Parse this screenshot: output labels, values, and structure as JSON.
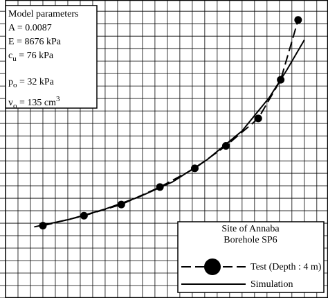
{
  "chart_data": {
    "type": "line",
    "grid": true,
    "xlim": [
      0,
      25.9
    ],
    "ylim": [
      0,
      23.9
    ],
    "series": [
      {
        "name": "Test (Depth : 4 m)",
        "color": "#000",
        "marker": "circle",
        "dash": true,
        "x": [
          3.0,
          6.3,
          9.3,
          12.4,
          15.2,
          17.7,
          20.3,
          22.1,
          23.5
        ],
        "values": [
          5.8,
          6.6,
          7.5,
          8.9,
          10.4,
          12.2,
          14.4,
          17.5,
          22.3
        ]
      },
      {
        "name": "Simulation",
        "color": "#000",
        "marker": "none",
        "dash": false,
        "x": [
          2.3,
          5.1,
          7.9,
          10.7,
          13.4,
          16.2,
          19.0,
          21.2,
          22.6,
          24.0
        ],
        "values": [
          5.7,
          6.3,
          7.1,
          8.1,
          9.3,
          11.1,
          13.4,
          16.1,
          18.3,
          20.7
        ]
      }
    ],
    "parameters_title": "Model parameters",
    "parameters": [
      {
        "symbol": "A",
        "sub": "",
        "text": "  = 0.0087",
        "sup": ""
      },
      {
        "symbol": "E",
        "sub": "",
        "text": " = 8676 kPa",
        "sup": ""
      },
      {
        "symbol": "c",
        "sub": "u",
        "text": " = 76 kPa",
        "sup": ""
      },
      {
        "symbol": "p",
        "sub": "o",
        "text": " = 32 kPa",
        "sup": ""
      },
      {
        "symbol": "v",
        "sub": "o",
        "text": " = 135 cm",
        "sup": "3"
      }
    ],
    "legend_title": [
      "Site of Annaba",
      "Borehole SP6"
    ]
  }
}
